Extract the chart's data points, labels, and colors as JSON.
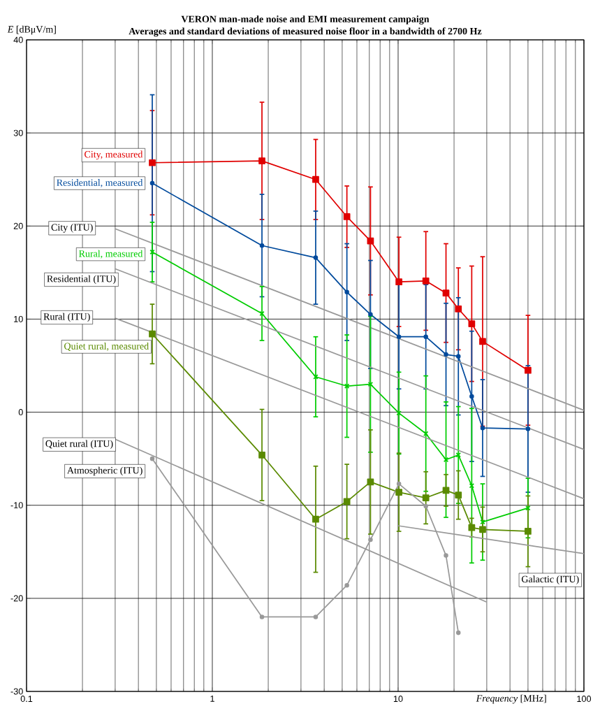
{
  "chart_data": {
    "type": "line",
    "title": "VERON man-made noise and EMI measurement campaign",
    "subtitle": "Averages and standard deviations of measured noise floor in a bandwidth of 2700 Hz",
    "xlabel": "*Frequency* [MHz]",
    "ylabel": "*E* [dBμV/m]",
    "log": "x",
    "grid": true,
    "xlim": [
      0.1,
      100
    ],
    "ylim": [
      -30,
      40
    ],
    "xticks": [
      0.1,
      1,
      10,
      100
    ],
    "yticks": [
      -30,
      -20,
      -10,
      0,
      10,
      20,
      30,
      40
    ],
    "series": [
      {
        "name": "City, measured",
        "color": "#e00000",
        "marker": "square",
        "x": [
          0.475,
          1.85,
          3.6,
          5.3,
          7.1,
          10.1,
          14.1,
          18.1,
          21.1,
          24.9,
          28.5,
          50
        ],
        "values": [
          26.8,
          27.0,
          25.0,
          21.0,
          18.4,
          14.0,
          14.1,
          12.8,
          11.1,
          9.5,
          7.6,
          4.5
        ],
        "errors": [
          5.6,
          6.3,
          4.3,
          3.3,
          5.8,
          4.8,
          5.3,
          5.3,
          4.4,
          6.2,
          9.1,
          5.9
        ]
      },
      {
        "name": "Residential, measured",
        "color": "#004a9c",
        "marker": "circle",
        "x": [
          0.475,
          1.85,
          3.6,
          5.3,
          7.1,
          10.1,
          14.1,
          18.1,
          21.1,
          24.9,
          28.5,
          50
        ],
        "values": [
          24.6,
          17.9,
          16.6,
          12.9,
          10.5,
          8.1,
          8.1,
          6.2,
          6.0,
          1.7,
          -1.7,
          -1.8
        ],
        "errors": [
          9.5,
          5.5,
          5.0,
          5.2,
          5.8,
          5.6,
          5.6,
          5.5,
          6.3,
          7.0,
          5.2,
          6.8
        ]
      },
      {
        "name": "City (ITU)",
        "color": "#999999",
        "marker": "none",
        "x": [
          0.3,
          100
        ],
        "values": [
          19.7,
          0.2
        ]
      },
      {
        "name": "Rural, measured",
        "color": "#00cc00",
        "marker": "cross",
        "x": [
          0.475,
          1.85,
          3.6,
          5.3,
          7.1,
          10.1,
          14.1,
          18.1,
          21.1,
          24.9,
          28.5,
          50
        ],
        "values": [
          17.2,
          10.6,
          3.8,
          2.8,
          3.0,
          -0.1,
          -2.3,
          -5.1,
          -4.6,
          -7.9,
          -11.8,
          -10.3
        ],
        "errors": [
          3.2,
          2.9,
          4.3,
          5.5,
          7.3,
          4.4,
          6.2,
          6.2,
          5.2,
          8.3,
          4.1,
          3.2
        ]
      },
      {
        "name": "Residential (ITU)",
        "color": "#999999",
        "marker": "none",
        "x": [
          0.3,
          100
        ],
        "values": [
          15.4,
          -4.0
        ]
      },
      {
        "name": "Rural (ITU)",
        "color": "#999999",
        "marker": "none",
        "x": [
          0.3,
          100
        ],
        "values": [
          10.1,
          -9.3
        ]
      },
      {
        "name": "Quiet rural, measured",
        "color": "#5a8a00",
        "marker": "square",
        "x": [
          0.475,
          1.85,
          3.6,
          5.3,
          7.1,
          10.1,
          14.1,
          18.1,
          21.1,
          24.9,
          28.5,
          50
        ],
        "values": [
          8.4,
          -4.6,
          -11.5,
          -9.6,
          -7.5,
          -8.6,
          -9.2,
          -8.4,
          -8.9,
          -12.4,
          -12.6,
          -12.8
        ],
        "errors": [
          3.2,
          4.9,
          5.7,
          4.0,
          5.6,
          4.2,
          2.8,
          1.7,
          2.6,
          1.0,
          2.4,
          3.8
        ]
      },
      {
        "name": "Quiet rural (ITU)",
        "color": "#999999",
        "marker": "none",
        "x": [
          0.3,
          30
        ],
        "values": [
          -2.9,
          -20.4
        ]
      },
      {
        "name": "Atmospheric (ITU)",
        "color": "#999999",
        "marker": "circle",
        "x": [
          0.475,
          1.85,
          3.6,
          5.3,
          7.1,
          10.1,
          14.1,
          18.1,
          21.1
        ],
        "values": [
          -5.0,
          -22.0,
          -22.0,
          -18.6,
          -13.7,
          -7.7,
          -10.1,
          -15.4,
          -23.7
        ]
      },
      {
        "name": "Galactic (ITU)",
        "color": "#999999",
        "marker": "none",
        "x": [
          10,
          100
        ],
        "values": [
          -12.2,
          -15.2
        ]
      }
    ]
  }
}
